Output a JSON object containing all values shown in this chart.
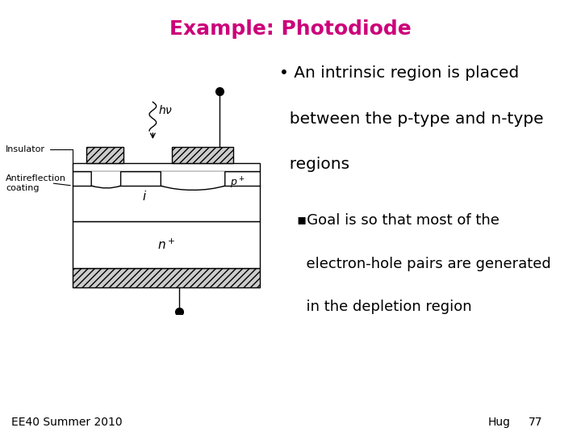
{
  "title": "Example: Photodiode",
  "title_color": "#CC007A",
  "title_fontsize": 18,
  "bg_color": "#FFFFFF",
  "green_bar_color": "#2D6A2D",
  "bullet_line1": "• An intrinsic region is placed",
  "bullet_line2": "  between the p-type and n-type",
  "bullet_line3": "  regions",
  "sub_line1": "▪Goal is so that most of the",
  "sub_line2": "  electron-hole pairs are generated",
  "sub_line3": "  in the depletion region",
  "bullet_fontsize": 14.5,
  "sub_fontsize": 13,
  "footer_left": "EE40 Summer 2010",
  "footer_right": "Hug",
  "footer_page": "77",
  "footer_fontsize": 10
}
